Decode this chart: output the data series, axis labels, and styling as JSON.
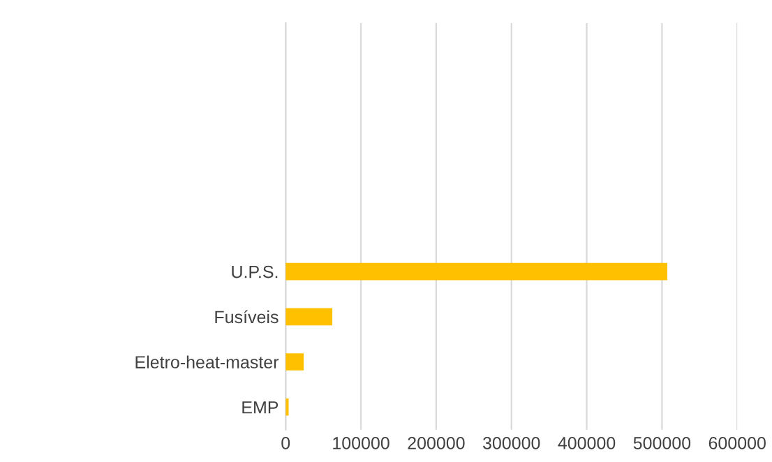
{
  "chart_data": {
    "type": "bar",
    "orientation": "horizontal",
    "categories": [
      null,
      null,
      null,
      null,
      null,
      "U.P.S.",
      "Fusíveis",
      "Eletro-heat-master",
      "EMP"
    ],
    "values": [
      null,
      null,
      null,
      null,
      null,
      507000,
      62000,
      24000,
      4000
    ],
    "color": "#ffc000",
    "xlim": [
      0,
      600000
    ],
    "xticks": [
      0,
      100000,
      200000,
      300000,
      400000,
      500000,
      600000
    ],
    "grid": "x",
    "legend": false
  }
}
